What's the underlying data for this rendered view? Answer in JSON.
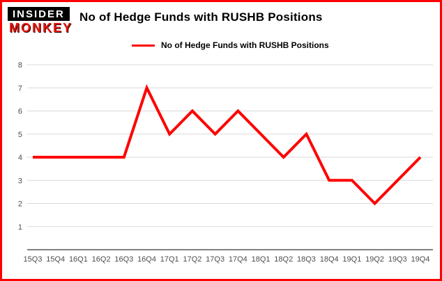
{
  "header": {
    "logo_top": "INSIDER",
    "logo_bottom": "MONKEY",
    "title": "No of Hedge Funds with RUSHB Positions"
  },
  "legend": {
    "label": "No of Hedge Funds with RUSHB Positions"
  },
  "colors": {
    "border": "#fe0000",
    "line": "#fe0000",
    "grid": "#d9d9d9",
    "axis_line": "#000000",
    "tick_text": "#4d4d4d"
  },
  "chart_data": {
    "type": "line",
    "title": "No of Hedge Funds with RUSHB Positions",
    "categories": [
      "15Q3",
      "15Q4",
      "16Q1",
      "16Q2",
      "16Q3",
      "16Q4",
      "17Q1",
      "17Q2",
      "17Q3",
      "17Q4",
      "18Q1",
      "18Q2",
      "18Q3",
      "18Q4",
      "19Q1",
      "19Q2",
      "19Q3",
      "19Q4"
    ],
    "values": [
      4,
      4,
      4,
      4,
      4,
      7,
      5,
      6,
      5,
      6,
      5,
      4,
      5,
      3,
      3,
      2,
      3,
      4
    ],
    "xlabel": "",
    "ylabel": "",
    "ylim": [
      0,
      8
    ],
    "yticks": [
      1,
      2,
      3,
      4,
      5,
      6,
      7,
      8
    ],
    "grid": true,
    "legend_position": "top-left",
    "line_color": "#fe0000",
    "line_width": 4
  }
}
